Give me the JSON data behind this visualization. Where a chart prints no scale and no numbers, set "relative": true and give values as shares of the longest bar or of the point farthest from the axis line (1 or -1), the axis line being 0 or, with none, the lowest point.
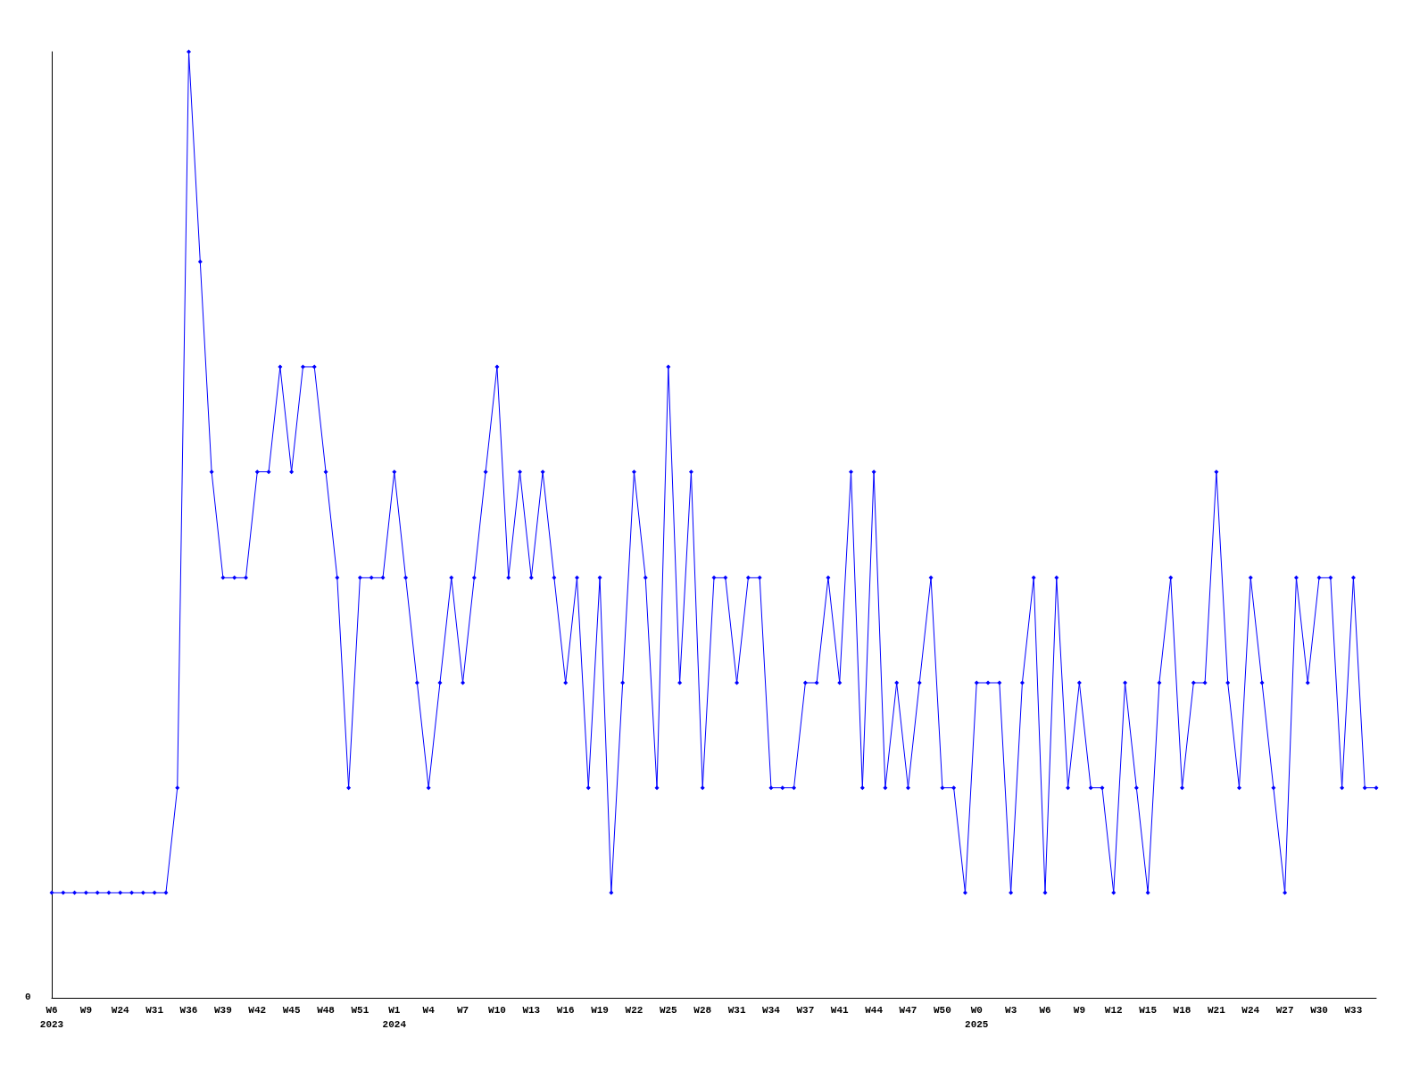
{
  "chart_data": {
    "type": "line",
    "relative": true,
    "annotations": [
      "0"
    ],
    "marker": "diamond",
    "line_style": "solid",
    "grid": false,
    "categories": [
      "W6\n2023",
      null,
      null,
      "W9",
      null,
      null,
      "W24",
      null,
      null,
      "W31",
      null,
      null,
      "W36",
      null,
      null,
      "W39",
      null,
      null,
      "W42",
      null,
      null,
      "W45",
      null,
      null,
      "W48",
      null,
      null,
      "W51",
      null,
      null,
      "W1\n2024",
      null,
      null,
      "W4",
      null,
      null,
      "W7",
      null,
      null,
      "W10",
      null,
      null,
      "W13",
      null,
      null,
      "W16",
      null,
      null,
      "W19",
      null,
      null,
      "W22",
      null,
      null,
      "W25",
      null,
      null,
      "W28",
      null,
      null,
      "W31",
      null,
      null,
      "W34",
      null,
      null,
      "W37",
      null,
      null,
      "W41",
      null,
      null,
      "W44",
      null,
      null,
      "W47",
      null,
      null,
      "W50",
      null,
      null,
      "W0\n2025",
      null,
      null,
      "W3",
      null,
      null,
      "W6",
      null,
      null,
      "W9",
      null,
      null,
      "W12",
      null,
      null,
      "W15",
      null,
      null,
      "W18",
      null,
      null,
      "W21",
      null,
      null,
      "W24",
      null,
      null,
      "W27",
      null,
      null,
      "W30",
      null,
      null,
      "W33",
      null,
      null
    ],
    "series": [
      {
        "color": "#0000ff",
        "values": [
          0.111,
          0.111,
          0.111,
          0.111,
          0.111,
          0.111,
          0.111,
          0.111,
          0.111,
          0.111,
          0.111,
          0.222,
          1,
          0.778,
          0.556,
          0.444,
          0.444,
          0.444,
          0.556,
          0.556,
          0.667,
          0.556,
          0.667,
          0.667,
          0.556,
          0.444,
          0.222,
          0.444,
          0.444,
          0.444,
          0.556,
          0.444,
          0.333,
          0.222,
          0.333,
          0.444,
          0.333,
          0.444,
          0.556,
          0.667,
          0.444,
          0.556,
          0.444,
          0.556,
          0.444,
          0.333,
          0.444,
          0.222,
          0.444,
          0.111,
          0.333,
          0.556,
          0.444,
          0.222,
          0.667,
          0.333,
          0.556,
          0.222,
          0.444,
          0.444,
          0.333,
          0.444,
          0.444,
          0.222,
          0.222,
          0.222,
          0.333,
          0.333,
          0.444,
          0.333,
          0.556,
          0.222,
          0.556,
          0.222,
          0.333,
          0.222,
          0.333,
          0.444,
          0.222,
          0.222,
          0.111,
          0.333,
          0.333,
          0.333,
          0.111,
          0.333,
          0.444,
          0.111,
          0.444,
          0.222,
          0.333,
          0.222,
          0.222,
          0.111,
          0.333,
          0.222,
          0.111,
          0.333,
          0.444,
          0.222,
          0.333,
          0.333,
          0.556,
          0.333,
          0.222,
          0.444,
          0.333,
          0.222,
          0.111,
          0.444,
          0.333,
          0.444,
          0.444,
          0.222,
          0.444,
          0.222,
          0.222
        ]
      }
    ]
  }
}
